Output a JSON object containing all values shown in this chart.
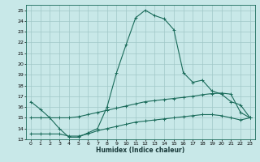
{
  "xlabel": "Humidex (Indice chaleur)",
  "bg_color": "#c8e8e8",
  "grid_color": "#a0c8c8",
  "line_color": "#1a6b5a",
  "xlim": [
    -0.5,
    23.5
  ],
  "ylim": [
    13,
    25.5
  ],
  "yticks": [
    13,
    14,
    15,
    16,
    17,
    18,
    19,
    20,
    21,
    22,
    23,
    24,
    25
  ],
  "xticks": [
    0,
    1,
    2,
    3,
    4,
    5,
    6,
    7,
    8,
    9,
    10,
    11,
    12,
    13,
    14,
    15,
    16,
    17,
    18,
    19,
    20,
    21,
    22,
    23
  ],
  "line1_x": [
    0,
    1,
    2,
    3,
    4,
    5,
    6,
    7,
    8,
    9,
    10,
    11,
    12,
    13,
    14,
    15,
    16,
    17,
    18,
    19,
    20,
    21,
    22,
    23
  ],
  "line1_y": [
    16.5,
    15.8,
    15.0,
    14.0,
    13.2,
    13.2,
    13.6,
    14.0,
    16.0,
    19.2,
    21.8,
    24.3,
    25.0,
    24.5,
    24.2,
    23.2,
    19.2,
    18.3,
    18.5,
    17.5,
    17.2,
    16.5,
    16.2,
    15.0
  ],
  "line2_x": [
    0,
    1,
    2,
    3,
    4,
    5,
    6,
    7,
    8,
    9,
    10,
    11,
    12,
    13,
    14,
    15,
    16,
    17,
    18,
    19,
    20,
    21,
    22,
    23
  ],
  "line2_y": [
    15.0,
    15.0,
    15.0,
    15.0,
    15.0,
    15.1,
    15.3,
    15.5,
    15.7,
    15.9,
    16.1,
    16.3,
    16.5,
    16.6,
    16.7,
    16.8,
    16.9,
    17.0,
    17.15,
    17.25,
    17.3,
    17.2,
    15.5,
    15.0
  ],
  "line3_x": [
    0,
    1,
    2,
    3,
    4,
    5,
    6,
    7,
    8,
    9,
    10,
    11,
    12,
    13,
    14,
    15,
    16,
    17,
    18,
    19,
    20,
    21,
    22,
    23
  ],
  "line3_y": [
    13.5,
    13.5,
    13.5,
    13.5,
    13.3,
    13.3,
    13.5,
    13.8,
    14.0,
    14.2,
    14.4,
    14.6,
    14.7,
    14.8,
    14.9,
    15.0,
    15.1,
    15.2,
    15.3,
    15.3,
    15.2,
    15.0,
    14.8,
    15.0
  ]
}
